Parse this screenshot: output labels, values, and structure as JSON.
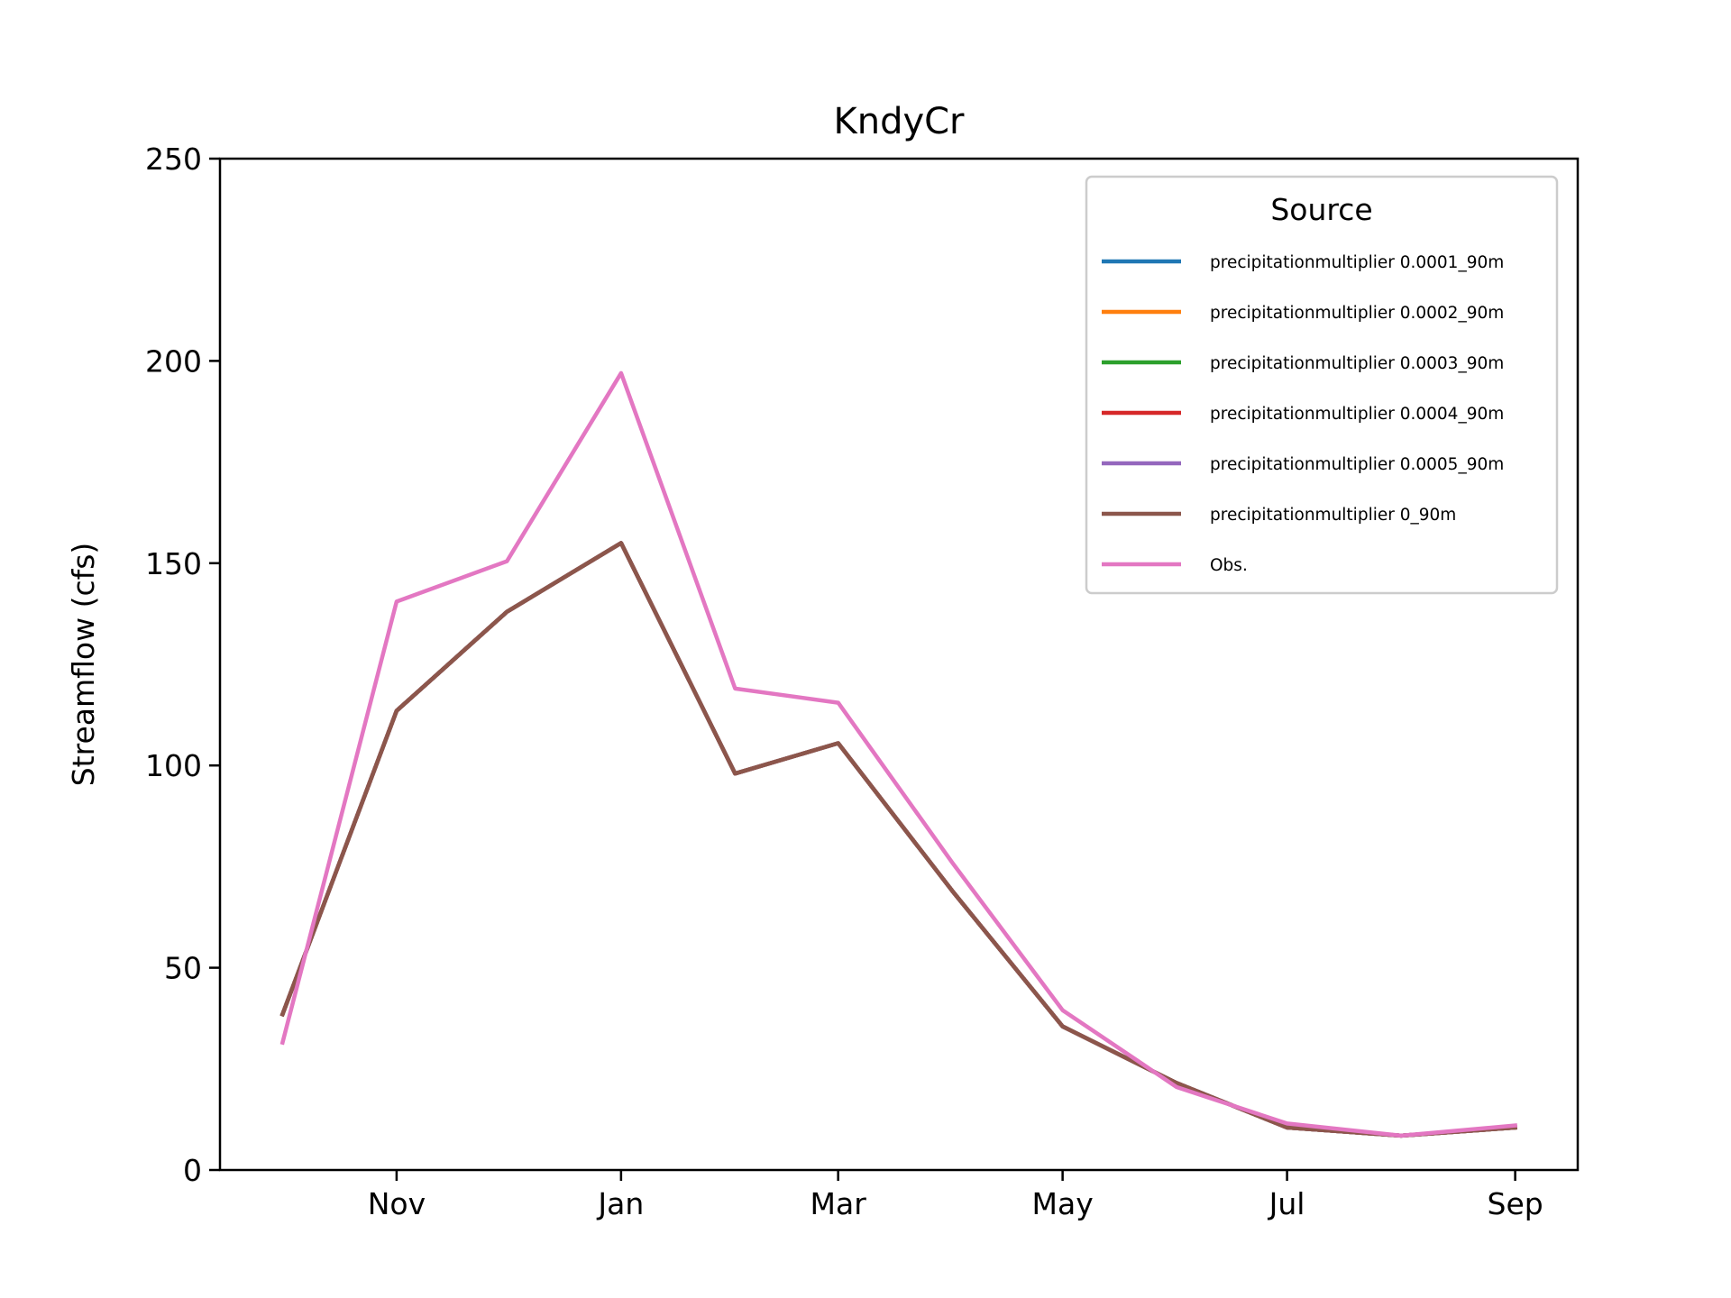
{
  "chart_data": {
    "type": "line",
    "title": "KndyCr",
    "xlabel": "",
    "ylabel": "Streamflow (cfs)",
    "ylim": [
      0,
      250
    ],
    "y_ticks": [
      "0",
      "50",
      "100",
      "150",
      "200",
      "250"
    ],
    "x_ticks": [
      {
        "label": "Nov",
        "date": "Nov 1"
      },
      {
        "label": "Jan",
        "date": "Jan 1"
      },
      {
        "label": "Mar",
        "date": "Mar 1"
      },
      {
        "label": "May",
        "date": "May 1"
      },
      {
        "label": "Jul",
        "date": "Jul 1"
      },
      {
        "label": "Sep",
        "date": "Sep 1"
      }
    ],
    "x": [
      "Oct 1",
      "Nov 1",
      "Dec 1",
      "Jan 1",
      "Feb 1",
      "Mar 1",
      "Apr 1",
      "May 1",
      "Jun 1",
      "Jul 1",
      "Aug 1",
      "Sep 1"
    ],
    "grid": false,
    "legend_title": "Source",
    "legend_position": "upper right",
    "series": [
      {
        "name": "precipitationmultiplier 0.0001_90m",
        "color": "#1f77b4",
        "values": [
          38.5,
          113.5,
          138,
          155,
          98,
          105.5,
          69,
          35.5,
          21.5,
          10.5,
          8.5,
          10.5
        ]
      },
      {
        "name": "precipitationmultiplier 0.0002_90m",
        "color": "#ff7f0e",
        "values": [
          38.5,
          113.5,
          138,
          155,
          98,
          105.5,
          69,
          35.5,
          21.5,
          10.5,
          8.5,
          10.5
        ]
      },
      {
        "name": "precipitationmultiplier 0.0003_90m",
        "color": "#2ca02c",
        "values": [
          38.5,
          113.5,
          138,
          155,
          98,
          105.5,
          69,
          35.5,
          21.5,
          10.5,
          8.5,
          10.5
        ]
      },
      {
        "name": "precipitationmultiplier 0.0004_90m",
        "color": "#d62728",
        "values": [
          38.5,
          113.5,
          138,
          155,
          98,
          105.5,
          69,
          35.5,
          21.5,
          10.5,
          8.5,
          10.5
        ]
      },
      {
        "name": "precipitationmultiplier 0.0005_90m",
        "color": "#9467bd",
        "values": [
          38.5,
          113.5,
          138,
          155,
          98,
          105.5,
          69,
          35.5,
          21.5,
          10.5,
          8.5,
          10.5
        ]
      },
      {
        "name": "precipitationmultiplier 0_90m",
        "color": "#8c564b",
        "values": [
          38.5,
          113.5,
          138,
          155,
          98,
          105.5,
          69,
          35.5,
          21.5,
          10.5,
          8.5,
          10.5
        ]
      },
      {
        "name": "Obs.",
        "color": "#e377c2",
        "values": [
          31.5,
          140.5,
          150.5,
          197,
          119,
          115.5,
          76,
          39.5,
          20.5,
          11.5,
          8.5,
          11
        ]
      }
    ]
  }
}
